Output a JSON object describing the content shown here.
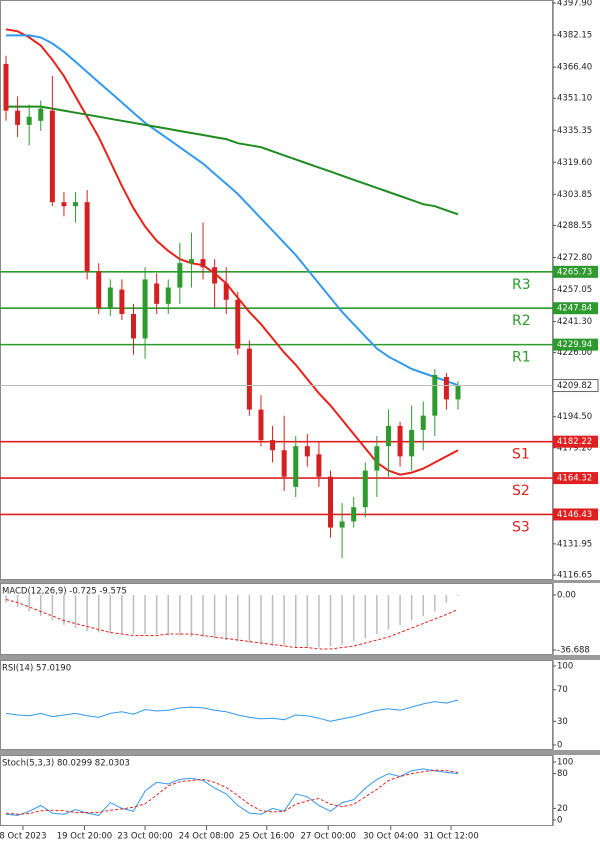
{
  "chart_data": [
    {
      "type": "candlestick",
      "ylim": [
        4114.2,
        4399.4
      ],
      "yticks": [
        {
          "value": 4397.9,
          "label": "4397.90"
        },
        4382.15,
        {
          "value": 4366.4,
          "label": "4366.40"
        },
        {
          "value": 4351.1,
          "label": "4351.10"
        },
        4335.35,
        {
          "value": 4319.6,
          "label": "4319.60"
        },
        4303.85,
        4288.55,
        {
          "value": 4272.8,
          "label": "4272.80"
        },
        4257.05,
        {
          "value": 4241.3,
          "label": "4241.30"
        },
        {
          "value": 4226,
          "label": "4226.00"
        },
        {
          "value": 4194.5,
          "label": "4194.50"
        },
        {
          "value": 4179.2,
          "label": "4179.20"
        },
        4131.95,
        4116.65
      ],
      "xticks": [
        {
          "value": 1.46,
          "label": "8 Oct 2023"
        },
        {
          "value": 6.77,
          "label": "19 Oct 20:00"
        },
        {
          "value": 12.0,
          "label": "23 Oct 00:00"
        },
        {
          "value": 17.3,
          "label": "24 Oct 08:00"
        },
        {
          "value": 22.5,
          "label": "25 Oct 16:00"
        },
        {
          "value": 27.8,
          "label": "27 Oct 00:00"
        },
        {
          "value": 33.2,
          "label": "30 Oct 04:00"
        },
        {
          "value": 38.4,
          "label": "31 Oct 12:00"
        }
      ],
      "up_color": "#2e9a2e",
      "down_color": "#d42020",
      "open": [
        4368,
        4345,
        4338,
        4340,
        4345,
        4300,
        4298,
        4300,
        4266,
        4248,
        4257,
        4245,
        4233,
        4260,
        4250,
        4258,
        4270,
        4272,
        4268,
        4260,
        4252,
        4228,
        4198,
        4183,
        4178,
        4160,
        4180,
        4176,
        4165,
        4140,
        4143,
        4150,
        4168,
        4180,
        4190,
        4175,
        4188,
        4195,
        4214,
        4203
      ],
      "high": [
        4372,
        4352,
        4348,
        4350,
        4362,
        4305,
        4305,
        4306,
        4270,
        4262,
        4262,
        4250,
        4268,
        4265,
        4262,
        4280,
        4285,
        4290,
        4272,
        4268,
        4256,
        4232,
        4205,
        4190,
        4195,
        4185,
        4186,
        4182,
        4168,
        4152,
        4155,
        4172,
        4185,
        4198,
        4192,
        4200,
        4202,
        4218,
        4216,
        4212
      ],
      "low": [
        4340,
        4332,
        4328,
        4335,
        4298,
        4293,
        4290,
        4262,
        4245,
        4244,
        4242,
        4225,
        4223,
        4245,
        4245,
        4250,
        4258,
        4262,
        4248,
        4245,
        4225,
        4195,
        4180,
        4172,
        4158,
        4155,
        4170,
        4160,
        4135,
        4125,
        4140,
        4145,
        4155,
        4165,
        4170,
        4168,
        4178,
        4185,
        4198,
        4198
      ],
      "close": [
        4345,
        4338,
        4342,
        4346,
        4300,
        4298,
        4300,
        4266,
        4248,
        4258,
        4245,
        4233,
        4262,
        4250,
        4258,
        4270,
        4272,
        4268,
        4260,
        4252,
        4228,
        4198,
        4183,
        4178,
        4165,
        4180,
        4175,
        4165,
        4140,
        4143,
        4150,
        4168,
        4180,
        4190,
        4175,
        4188,
        4195,
        4215,
        4203,
        4210
      ],
      "series": [
        {
          "color": "#e8211a",
          "values": [
            4385,
            4384,
            4381,
            4377,
            4370,
            4362,
            4352,
            4342,
            4332,
            4320,
            4308,
            4297,
            4288,
            4281,
            4276,
            4272,
            4270,
            4269,
            4265,
            4260,
            4253,
            4246,
            4240,
            4233,
            4226,
            4220,
            4213,
            4206,
            4200,
            4193,
            4186,
            4179,
            4172,
            4168,
            4166,
            4167,
            4169,
            4172,
            4175,
            4178
          ]
        },
        {
          "color": "#3399ee",
          "values": [
            4382,
            4382,
            4382,
            4381,
            4378,
            4374,
            4369,
            4364,
            4359,
            4354,
            4349,
            4344,
            4339,
            4335,
            4331,
            4327,
            4323,
            4319,
            4314,
            4309,
            4304,
            4298,
            4292,
            4286,
            4280,
            4274,
            4267,
            4260,
            4253,
            4246,
            4240,
            4234,
            4228,
            4224,
            4221,
            4218,
            4216,
            4214,
            4212,
            4210
          ]
        },
        {
          "color": "#1f8a1f",
          "values": [
            4347,
            4347,
            4347,
            4347,
            4346,
            4345,
            4344,
            4343,
            4342,
            4341,
            4340,
            4339,
            4338,
            4337,
            4336,
            4335,
            4334,
            4333,
            4332,
            4331,
            4329,
            4328,
            4327,
            4325,
            4323,
            4321,
            4319,
            4317,
            4315,
            4313,
            4311,
            4309,
            4307,
            4305,
            4303,
            4301,
            4299,
            4298,
            4296,
            4294
          ]
        }
      ],
      "levels": [
        {
          "name": "R3",
          "value": 4265.73,
          "color": "#2e9a2e"
        },
        {
          "name": "R2",
          "value": 4247.84,
          "color": "#2e9a2e"
        },
        {
          "name": "R1",
          "value": 4229.94,
          "color": "#2e9a2e"
        },
        {
          "name": "S1",
          "value": 4182.22,
          "color": "#e02020"
        },
        {
          "name": "S2",
          "value": 4164.32,
          "color": "#e02020"
        },
        {
          "name": "S3",
          "value": 4146.43,
          "color": "#e02020"
        }
      ],
      "last_price": 4209.82
    },
    {
      "type": "macd",
      "label": "MACD(12,26,9) -0.725 -9.575",
      "ylim": [
        -40,
        8
      ],
      "yticks": [
        {
          "value": 0,
          "label": "0.00"
        },
        -36.688
      ],
      "series": [
        {
          "kind": "bar",
          "color": "#bdbdbd",
          "values": [
            -5,
            -8,
            -11,
            -14,
            -17,
            -20,
            -22,
            -24,
            -25,
            -26,
            -26,
            -26,
            -26,
            -26,
            -27,
            -27,
            -28,
            -28,
            -29,
            -30,
            -31,
            -32,
            -33,
            -34,
            -34,
            -35,
            -35,
            -35,
            -34,
            -33,
            -31,
            -29,
            -26,
            -23,
            -20,
            -17,
            -14,
            -11,
            -5,
            -0.725
          ]
        },
        {
          "kind": "dashed",
          "color": "#e8211a",
          "values": [
            -3,
            -5,
            -8,
            -11,
            -14,
            -17,
            -19,
            -21,
            -23,
            -25,
            -26,
            -27,
            -27,
            -27,
            -26,
            -26,
            -26,
            -27,
            -28,
            -29,
            -30,
            -31,
            -32,
            -33,
            -34,
            -35,
            -35,
            -36,
            -36,
            -35,
            -34,
            -32,
            -30,
            -28,
            -25,
            -22,
            -19,
            -16,
            -13,
            -9.575
          ]
        }
      ]
    },
    {
      "type": "line",
      "label": "RSI(14) 57.0190",
      "ylim": [
        -6.3,
        107.6
      ],
      "yticks": [
        100,
        70,
        30,
        0
      ],
      "series": [
        {
          "kind": "solid",
          "color": "#3399ee",
          "values": [
            40,
            38,
            37,
            40,
            36,
            38,
            40,
            37,
            35,
            40,
            42,
            39,
            45,
            43,
            44,
            47,
            48,
            47,
            44,
            42,
            38,
            35,
            33,
            34,
            32,
            38,
            37,
            34,
            30,
            33,
            36,
            40,
            44,
            46,
            44,
            48,
            52,
            55,
            53,
            57.019
          ]
        }
      ]
    },
    {
      "type": "line",
      "label": "Stoch(5,3,3) 80.0299 82.0303",
      "ylim": [
        -10.3,
        112
      ],
      "yticks": [
        100,
        80,
        20,
        0
      ],
      "series": [
        {
          "kind": "solid",
          "color": "#3399ee",
          "values": [
            10,
            8,
            15,
            25,
            12,
            10,
            18,
            12,
            8,
            30,
            20,
            15,
            50,
            65,
            62,
            70,
            72,
            68,
            55,
            45,
            25,
            12,
            10,
            20,
            15,
            45,
            40,
            25,
            15,
            30,
            35,
            55,
            70,
            80,
            75,
            85,
            88,
            85,
            82,
            80.0299
          ]
        },
        {
          "kind": "dashed",
          "color": "#e8211a",
          "values": [
            12,
            10,
            11,
            16,
            17,
            16,
            13,
            13,
            13,
            17,
            19,
            22,
            28,
            43,
            59,
            66,
            68,
            70,
            65,
            56,
            42,
            27,
            16,
            14,
            15,
            27,
            33,
            37,
            27,
            23,
            27,
            40,
            53,
            68,
            75,
            80,
            83,
            86,
            85,
            82.0303
          ]
        }
      ]
    }
  ]
}
